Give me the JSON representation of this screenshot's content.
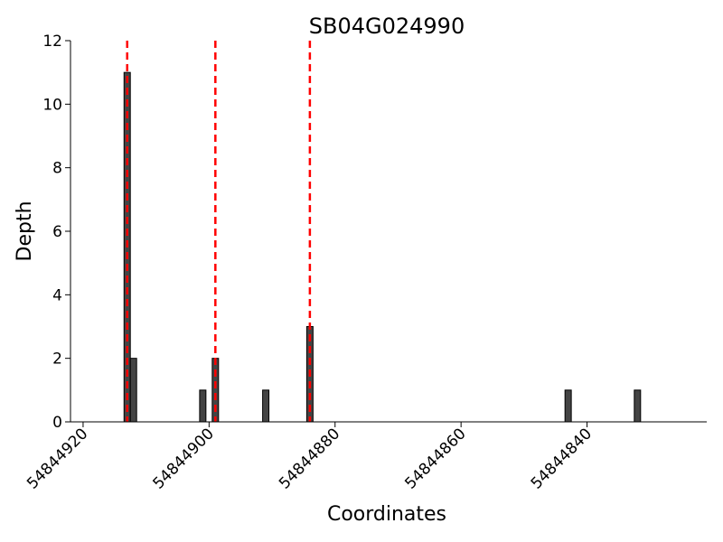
{
  "chart_data": {
    "type": "bar",
    "title": "SB04G024990",
    "x_label": "Coordinates",
    "y_label": "Depth",
    "x": [
      54844913,
      54844912,
      54844901,
      54844899,
      54844891,
      54844884,
      54844843,
      54844832
    ],
    "values": [
      11,
      2,
      1,
      2,
      1,
      3,
      1,
      1
    ],
    "bar_width": 1,
    "color": "#444444",
    "vlines": [
      54844913,
      54844899,
      54844884
    ],
    "vline_color": "#ff0000",
    "xlim": [
      54844922,
      54844821
    ],
    "xticks": [
      54844920,
      54844900,
      54844880,
      54844860,
      54844840
    ],
    "ylim": [
      0,
      12
    ],
    "yticks": [
      0,
      2,
      4,
      6,
      8,
      10,
      12
    ]
  }
}
